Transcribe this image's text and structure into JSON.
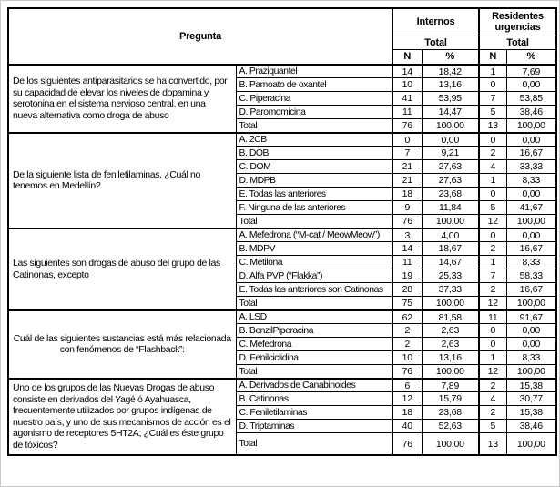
{
  "colors": {
    "border": "#000000",
    "text": "#000000",
    "background": "#ffffff"
  },
  "header": {
    "pregunta": "Pregunta",
    "group1": "Internos",
    "group2": "Residentes urgencias",
    "total": "Total",
    "n": "N",
    "pct": "%"
  },
  "table": {
    "blocks": [
      {
        "question": "De los siguientes antiparasitarios se ha convertido, por su capacidad de elevar los niveles de dopamina y serotonina en el sistema nervioso central, en una nueva alternativa como droga de abuso",
        "align": "left",
        "rows": [
          {
            "option": "A.  Praziquantel",
            "cells": [
              "14",
              "18,42",
              "1",
              "7,69"
            ]
          },
          {
            "option": "B.  Pamoato de oxantel",
            "cells": [
              "10",
              "13,16",
              "0",
              "0,00"
            ]
          },
          {
            "option": "C.  Piperacina",
            "cells": [
              "41",
              "53,95",
              "7",
              "53,85"
            ]
          },
          {
            "option": "D.  Paromomicina",
            "cells": [
              "11",
              "14,47",
              "5",
              "38,46"
            ]
          },
          {
            "option": "Total",
            "cells": [
              "76",
              "100,00",
              "13",
              "100,00"
            ]
          }
        ]
      },
      {
        "question": "De la siguiente lista de feniletilaminas, ¿Cuál no tenemos en Medellín?",
        "align": "left",
        "rows": [
          {
            "option": "A.  2CB",
            "cells": [
              "0",
              "0,00",
              "0",
              "0,00"
            ]
          },
          {
            "option": "B.  DOB",
            "cells": [
              "7",
              "9,21",
              "2",
              "16,67"
            ]
          },
          {
            "option": "C.  DOM",
            "cells": [
              "21",
              "27,63",
              "4",
              "33,33"
            ]
          },
          {
            "option": "D.  MDPB",
            "cells": [
              "21",
              "27,63",
              "1",
              "8,33"
            ]
          },
          {
            "option": "E.  Todas las anteriores",
            "cells": [
              "18",
              "23,68",
              "0",
              "0,00"
            ]
          },
          {
            "option": "F.  Ninguna de las anteriores",
            "cells": [
              "9",
              "11,84",
              "5",
              "41,67"
            ]
          },
          {
            "option": "Total",
            "cells": [
              "76",
              "100,00",
              "12",
              "100,00"
            ]
          }
        ]
      },
      {
        "question": "Las siguientes son drogas de abuso del grupo de las Catinonas, excepto",
        "align": "left",
        "rows": [
          {
            "option": "A.  Mefedrona (“M-cat / MeowMeow”)",
            "cells": [
              "3",
              "4,00",
              "0",
              "0,00"
            ]
          },
          {
            "option": "B.  MDPV",
            "cells": [
              "14",
              "18,67",
              "2",
              "16,67"
            ]
          },
          {
            "option": "C.  Metilona",
            "cells": [
              "11",
              "14,67",
              "1",
              "8,33"
            ]
          },
          {
            "option": "D.  Alfa PVP (“Flakka”)",
            "cells": [
              "19",
              "25,33",
              "7",
              "58,33"
            ]
          },
          {
            "option": "E.  Todas las anteriores son Catinonas",
            "cells": [
              "28",
              "37,33",
              "2",
              "16,67"
            ]
          },
          {
            "option": "Total",
            "cells": [
              "75",
              "100,00",
              "12",
              "100,00"
            ]
          }
        ]
      },
      {
        "question": "Cuál de las siguientes sustancias está más relacionada con fenómenos de “Flashback”:",
        "align": "center",
        "rows": [
          {
            "option": "A.  LSD",
            "cells": [
              "62",
              "81,58",
              "11",
              "91,67"
            ]
          },
          {
            "option": "B.  BenzilPiperacina",
            "cells": [
              "2",
              "2,63",
              "0",
              "0,00"
            ]
          },
          {
            "option": "C.  Mefedrona",
            "cells": [
              "2",
              "2,63",
              "0",
              "0,00"
            ]
          },
          {
            "option": "D.  Fenilciclidina",
            "cells": [
              "10",
              "13,16",
              "1",
              "8,33"
            ]
          },
          {
            "option": "Total",
            "cells": [
              "76",
              "100,00",
              "12",
              "100,00"
            ]
          }
        ]
      },
      {
        "question": "Uno de los grupos de las Nuevas Drogas de abuso consiste en derivados del Yagé ó Ayahuasca, frecuentemente utilizados por grupos indígenas de nuestro país, y uno de sus mecanismos de acción es el agonismo de receptores 5HT2A; ¿Cuál es éste grupo de tóxicos?",
        "align": "left",
        "rows": [
          {
            "option": "A.  Derivados de Canabinoides",
            "cells": [
              "6",
              "7,89",
              "2",
              "15,38"
            ]
          },
          {
            "option": "B.  Catinonas",
            "cells": [
              "12",
              "15,79",
              "4",
              "30,77"
            ]
          },
          {
            "option": "C.  Feniletilaminas",
            "cells": [
              "18",
              "23,68",
              "2",
              "15,38"
            ]
          },
          {
            "option": "D.  Triptaminas",
            "cells": [
              "40",
              "52,63",
              "5",
              "38,46"
            ]
          },
          {
            "option": "Total",
            "cells": [
              "76",
              "100,00",
              "13",
              "100,00"
            ]
          }
        ]
      }
    ]
  }
}
